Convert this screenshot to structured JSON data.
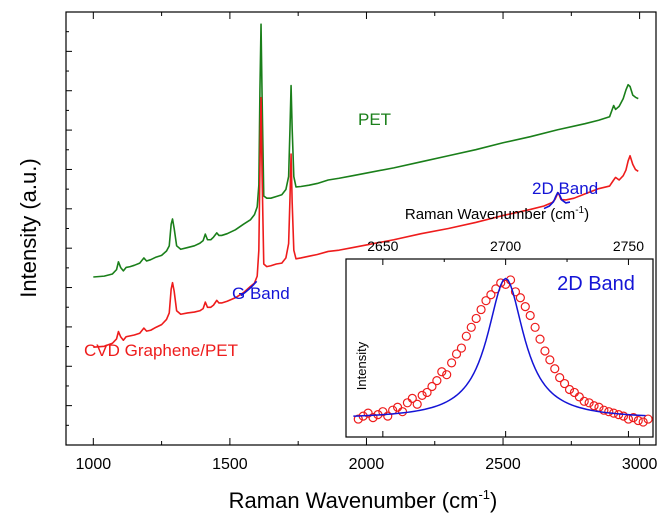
{
  "chart_data": [
    {
      "type": "line",
      "xlabel_main": "Raman Wavenumber (cm",
      "xlabel_sup": "-1",
      "xlabel_close": ")",
      "ylabel": "Intensity (a.u.)",
      "xlim": [
        900,
        3060
      ],
      "ylim": [
        0,
        1
      ],
      "x_ticks": [
        1000,
        1500,
        2000,
        2500,
        3000
      ],
      "x_tick_labels": [
        "1000",
        "1500",
        "2000",
        "2500",
        "3000"
      ],
      "grid": false,
      "series": [
        {
          "name": "PET",
          "color": "#1a7f1a",
          "x": [
            1000,
            1040,
            1070,
            1085,
            1092,
            1100,
            1110,
            1120,
            1135,
            1150,
            1170,
            1185,
            1195,
            1210,
            1230,
            1250,
            1268,
            1278,
            1285,
            1290,
            1296,
            1305,
            1320,
            1345,
            1370,
            1390,
            1402,
            1410,
            1418,
            1430,
            1440,
            1452,
            1460,
            1470,
            1490,
            1520,
            1550,
            1575,
            1590,
            1600,
            1606,
            1610,
            1614,
            1618,
            1624,
            1635,
            1650,
            1670,
            1690,
            1705,
            1715,
            1720,
            1724,
            1728,
            1734,
            1742,
            1760,
            1790,
            1820,
            1860,
            1900,
            1950,
            2000,
            2100,
            2200,
            2300,
            2400,
            2500,
            2600,
            2700,
            2800,
            2850,
            2890,
            2905,
            2912,
            2925,
            2940,
            2950,
            2958,
            2965,
            2975,
            2985,
            2995
          ],
          "y": [
            0.388,
            0.39,
            0.395,
            0.405,
            0.423,
            0.41,
            0.402,
            0.41,
            0.412,
            0.415,
            0.42,
            0.432,
            0.425,
            0.428,
            0.434,
            0.438,
            0.448,
            0.46,
            0.51,
            0.522,
            0.5,
            0.46,
            0.452,
            0.456,
            0.46,
            0.466,
            0.472,
            0.487,
            0.474,
            0.474,
            0.48,
            0.49,
            0.484,
            0.484,
            0.488,
            0.497,
            0.51,
            0.52,
            0.532,
            0.55,
            0.6,
            0.82,
            0.972,
            0.8,
            0.575,
            0.57,
            0.57,
            0.574,
            0.578,
            0.59,
            0.62,
            0.73,
            0.83,
            0.73,
            0.62,
            0.596,
            0.597,
            0.6,
            0.604,
            0.612,
            0.616,
            0.622,
            0.628,
            0.64,
            0.654,
            0.668,
            0.682,
            0.698,
            0.712,
            0.728,
            0.742,
            0.75,
            0.758,
            0.784,
            0.775,
            0.782,
            0.8,
            0.82,
            0.832,
            0.828,
            0.808,
            0.803,
            0.8
          ]
        },
        {
          "name": "CVD Graphene/PET",
          "color": "#ee1c1c",
          "x": [
            1000,
            1040,
            1070,
            1085,
            1092,
            1100,
            1110,
            1120,
            1135,
            1150,
            1170,
            1185,
            1195,
            1210,
            1230,
            1250,
            1268,
            1278,
            1285,
            1290,
            1296,
            1305,
            1320,
            1345,
            1370,
            1390,
            1402,
            1410,
            1418,
            1430,
            1440,
            1452,
            1460,
            1470,
            1490,
            1520,
            1550,
            1575,
            1590,
            1600,
            1606,
            1610,
            1614,
            1618,
            1624,
            1635,
            1650,
            1670,
            1690,
            1705,
            1715,
            1720,
            1724,
            1728,
            1734,
            1742,
            1760,
            1790,
            1820,
            1860,
            1900,
            1950,
            2000,
            2100,
            2200,
            2300,
            2400,
            2500,
            2600,
            2650,
            2680,
            2690,
            2698,
            2703,
            2712,
            2730,
            2760,
            2800,
            2850,
            2890,
            2905,
            2912,
            2925,
            2940,
            2950,
            2958,
            2965,
            2975,
            2985,
            2995
          ],
          "y": [
            0.226,
            0.228,
            0.235,
            0.245,
            0.262,
            0.25,
            0.242,
            0.25,
            0.252,
            0.254,
            0.258,
            0.27,
            0.263,
            0.265,
            0.272,
            0.278,
            0.29,
            0.305,
            0.36,
            0.375,
            0.355,
            0.31,
            0.302,
            0.305,
            0.307,
            0.31,
            0.315,
            0.33,
            0.318,
            0.318,
            0.323,
            0.334,
            0.328,
            0.328,
            0.332,
            0.34,
            0.352,
            0.366,
            0.374,
            0.39,
            0.45,
            0.64,
            0.802,
            0.62,
            0.418,
            0.412,
            0.414,
            0.418,
            0.42,
            0.432,
            0.465,
            0.57,
            0.672,
            0.56,
            0.45,
            0.43,
            0.432,
            0.436,
            0.44,
            0.447,
            0.45,
            0.456,
            0.462,
            0.474,
            0.488,
            0.5,
            0.514,
            0.53,
            0.544,
            0.552,
            0.56,
            0.567,
            0.578,
            0.582,
            0.567,
            0.566,
            0.57,
            0.58,
            0.592,
            0.598,
            0.612,
            0.618,
            0.612,
            0.622,
            0.635,
            0.656,
            0.668,
            0.648,
            0.636,
            0.632
          ],
          "annotation": "CVD Graphene/PET"
        },
        {
          "name": "G Band",
          "color": "#1414d6",
          "x": [
            1540,
            1555,
            1570,
            1585,
            1598
          ],
          "y": [
            0.345,
            0.352,
            0.36,
            0.369,
            0.378
          ]
        },
        {
          "name": "2D Band",
          "color": "#1414d6",
          "x": [
            2650,
            2670,
            2685,
            2693,
            2700,
            2707,
            2715,
            2730,
            2745
          ],
          "y": [
            0.546,
            0.552,
            0.562,
            0.574,
            0.583,
            0.578,
            0.566,
            0.559,
            0.561
          ]
        }
      ],
      "labels": {
        "pet": "PET",
        "cvd": "CVD Graphene/PET",
        "g_band": "G Band",
        "d2_band": "2D Band"
      }
    },
    {
      "type": "scatter",
      "title": "2D Band",
      "xlabel_main": "Raman Wavenumber (cm",
      "xlabel_sup": "-1",
      "xlabel_close": ")",
      "ylabel": "Intensity",
      "xlim": [
        2635,
        2760
      ],
      "ylim": [
        0,
        1
      ],
      "x_ticks": [
        2650,
        2700,
        2750
      ],
      "x_tick_labels": [
        "2650",
        "2700",
        "2750"
      ],
      "fit_center": 2700,
      "fit_width": 18,
      "fit_baseline": 0.04,
      "fit_amplitude": 0.95,
      "points": [
        [
          2640,
          0.04
        ],
        [
          2642,
          0.06
        ],
        [
          2644,
          0.08
        ],
        [
          2646,
          0.05
        ],
        [
          2648,
          0.07
        ],
        [
          2650,
          0.09
        ],
        [
          2652,
          0.06
        ],
        [
          2654,
          0.1
        ],
        [
          2656,
          0.12
        ],
        [
          2658,
          0.09
        ],
        [
          2660,
          0.15
        ],
        [
          2662,
          0.18
        ],
        [
          2664,
          0.14
        ],
        [
          2666,
          0.2
        ],
        [
          2668,
          0.22
        ],
        [
          2670,
          0.26
        ],
        [
          2672,
          0.3
        ],
        [
          2674,
          0.36
        ],
        [
          2676,
          0.34
        ],
        [
          2678,
          0.42
        ],
        [
          2680,
          0.48
        ],
        [
          2682,
          0.52
        ],
        [
          2684,
          0.6
        ],
        [
          2686,
          0.66
        ],
        [
          2688,
          0.72
        ],
        [
          2690,
          0.78
        ],
        [
          2692,
          0.84
        ],
        [
          2694,
          0.88
        ],
        [
          2696,
          0.92
        ],
        [
          2698,
          0.96
        ],
        [
          2700,
          0.95
        ],
        [
          2702,
          0.98
        ],
        [
          2704,
          0.9
        ],
        [
          2706,
          0.86
        ],
        [
          2708,
          0.8
        ],
        [
          2710,
          0.74
        ],
        [
          2712,
          0.66
        ],
        [
          2714,
          0.58
        ],
        [
          2716,
          0.5
        ],
        [
          2718,
          0.44
        ],
        [
          2720,
          0.38
        ],
        [
          2722,
          0.32
        ],
        [
          2724,
          0.28
        ],
        [
          2726,
          0.24
        ],
        [
          2728,
          0.22
        ],
        [
          2730,
          0.19
        ],
        [
          2732,
          0.16
        ],
        [
          2734,
          0.15
        ],
        [
          2736,
          0.13
        ],
        [
          2738,
          0.12
        ],
        [
          2740,
          0.1
        ],
        [
          2742,
          0.09
        ],
        [
          2744,
          0.08
        ],
        [
          2746,
          0.07
        ],
        [
          2748,
          0.06
        ],
        [
          2750,
          0.04
        ],
        [
          2752,
          0.05
        ],
        [
          2754,
          0.03
        ],
        [
          2756,
          0.02
        ],
        [
          2758,
          0.04
        ]
      ],
      "point_color": "#ee1c1c",
      "fit_color": "#1414d6"
    }
  ]
}
